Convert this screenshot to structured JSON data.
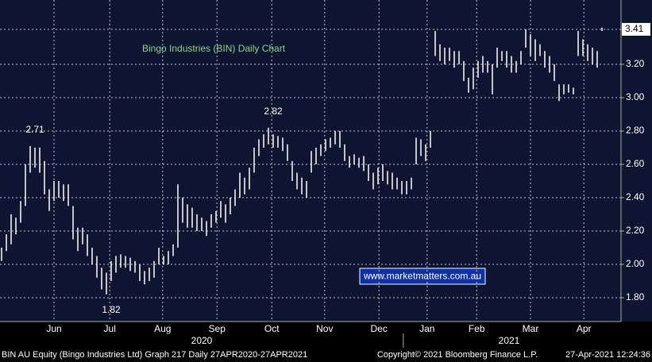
{
  "chart_data": {
    "type": "range-bar",
    "title": "Bingo Industries (BIN) Daily Chart",
    "high": [
      2.1,
      2.18,
      2.3,
      2.28,
      2.38,
      2.6,
      2.71,
      2.7,
      2.7,
      2.62,
      2.45,
      2.5,
      2.5,
      2.48,
      2.48,
      2.35,
      2.22,
      2.22,
      2.18,
      2.1,
      2.05,
      1.98,
      1.95,
      2.02,
      2.05,
      2.06,
      2.05,
      2.04,
      2.02,
      2.0,
      1.96,
      1.98,
      2.02,
      2.1,
      2.05,
      2.08,
      2.12,
      2.48,
      2.4,
      2.36,
      2.34,
      2.3,
      2.28,
      2.26,
      2.3,
      2.32,
      2.38,
      2.36,
      2.4,
      2.45,
      2.55,
      2.52,
      2.58,
      2.7,
      2.75,
      2.78,
      2.82,
      2.78,
      2.77,
      2.76,
      2.72,
      2.62,
      2.55,
      2.52,
      2.5,
      2.68,
      2.7,
      2.72,
      2.75,
      2.76,
      2.8,
      2.8,
      2.72,
      2.65,
      2.66,
      2.64,
      2.65,
      2.6,
      2.55,
      2.58,
      2.6,
      2.56,
      2.55,
      2.52,
      2.5,
      2.5,
      2.52,
      2.76,
      2.75,
      2.72,
      2.8,
      3.4,
      3.32,
      3.3,
      3.3,
      3.28,
      3.28,
      3.22,
      3.12,
      3.18,
      3.22,
      3.25,
      3.22,
      3.2,
      3.3,
      3.28,
      3.28,
      3.25,
      3.22,
      3.28,
      3.41,
      3.38,
      3.35,
      3.32,
      3.28,
      3.25,
      3.2,
      3.08,
      3.08,
      3.08,
      3.06,
      3.4,
      3.35,
      3.32,
      3.3,
      3.28,
      3.42
    ],
    "low": [
      2.02,
      2.08,
      2.12,
      2.18,
      2.25,
      2.35,
      2.55,
      2.58,
      2.55,
      2.42,
      2.32,
      2.38,
      2.4,
      2.38,
      2.35,
      2.15,
      2.08,
      2.12,
      2.05,
      2.0,
      1.92,
      1.85,
      1.82,
      1.9,
      1.95,
      1.98,
      1.98,
      1.96,
      1.95,
      1.9,
      1.88,
      1.9,
      1.92,
      2.0,
      2.0,
      2.0,
      2.05,
      2.1,
      2.25,
      2.22,
      2.22,
      2.2,
      2.2,
      2.17,
      2.22,
      2.25,
      2.28,
      2.25,
      2.3,
      2.35,
      2.4,
      2.42,
      2.45,
      2.55,
      2.65,
      2.7,
      2.72,
      2.7,
      2.7,
      2.68,
      2.62,
      2.5,
      2.45,
      2.42,
      2.4,
      2.55,
      2.6,
      2.65,
      2.68,
      2.7,
      2.72,
      2.7,
      2.62,
      2.58,
      2.6,
      2.58,
      2.56,
      2.5,
      2.45,
      2.48,
      2.5,
      2.48,
      2.45,
      2.45,
      2.42,
      2.42,
      2.45,
      2.6,
      2.65,
      2.62,
      2.7,
      3.25,
      3.22,
      3.2,
      3.22,
      3.18,
      3.2,
      3.1,
      3.03,
      3.05,
      3.12,
      3.15,
      3.15,
      3.02,
      3.18,
      3.22,
      3.18,
      3.15,
      3.15,
      3.2,
      3.3,
      3.25,
      3.22,
      3.25,
      3.18,
      3.15,
      3.1,
      2.98,
      3.02,
      3.03,
      3.02,
      3.25,
      3.25,
      3.22,
      3.2,
      3.18,
      3.4
    ],
    "xlim": [
      0,
      130
    ],
    "xticks": [
      {
        "value": 11,
        "label": "Jun"
      },
      {
        "value": 22.7,
        "label": "Jul"
      },
      {
        "value": 33.8,
        "label": "Aug"
      },
      {
        "value": 45.2,
        "label": "Sep"
      },
      {
        "value": 56.7,
        "label": "Oct"
      },
      {
        "value": 67.8,
        "label": "Nov"
      },
      {
        "value": 79.2,
        "label": "Dec"
      },
      {
        "value": 89.3,
        "label": "Jan"
      },
      {
        "value": 99.7,
        "label": "Feb"
      },
      {
        "value": 111,
        "label": "Mar"
      },
      {
        "value": 122.2,
        "label": "Apr"
      }
    ],
    "years": [
      {
        "value": 42,
        "label": "2020"
      },
      {
        "value": 106.5,
        "label": "2021"
      }
    ],
    "year_divider": 84.3,
    "ylim": [
      1.657,
      3.586
    ],
    "yticks": [
      {
        "value": 1.8,
        "label": "1.80"
      },
      {
        "value": 2.0,
        "label": "2.00"
      },
      {
        "value": 2.2,
        "label": "2.20"
      },
      {
        "value": 2.4,
        "label": "2.40"
      },
      {
        "value": 2.6,
        "label": "2.60"
      },
      {
        "value": 2.8,
        "label": "2.80"
      },
      {
        "value": 3.0,
        "label": "3.00"
      },
      {
        "value": 3.2,
        "label": "3.20"
      }
    ],
    "last_price": {
      "value": 3.41,
      "label": "3.41"
    },
    "annotations": [
      {
        "x": 6,
        "y": 2.71,
        "label": "2.71"
      },
      {
        "x": 56,
        "y": 2.82,
        "label": "2.82"
      },
      {
        "x": 22,
        "y": 1.82,
        "label": "1.82"
      }
    ],
    "watermark": "www.marketmatters.com.au",
    "footer": {
      "left": "BIN AU Equity (Bingo Industries Ltd) Graph 217  Daily 27APR2020-27APR2021",
      "center": "Copyright© 2021 Bloomberg Finance L.P.",
      "right": "27-Apr-2021 12:24:36"
    },
    "color": "#ffffff",
    "grid": true
  }
}
